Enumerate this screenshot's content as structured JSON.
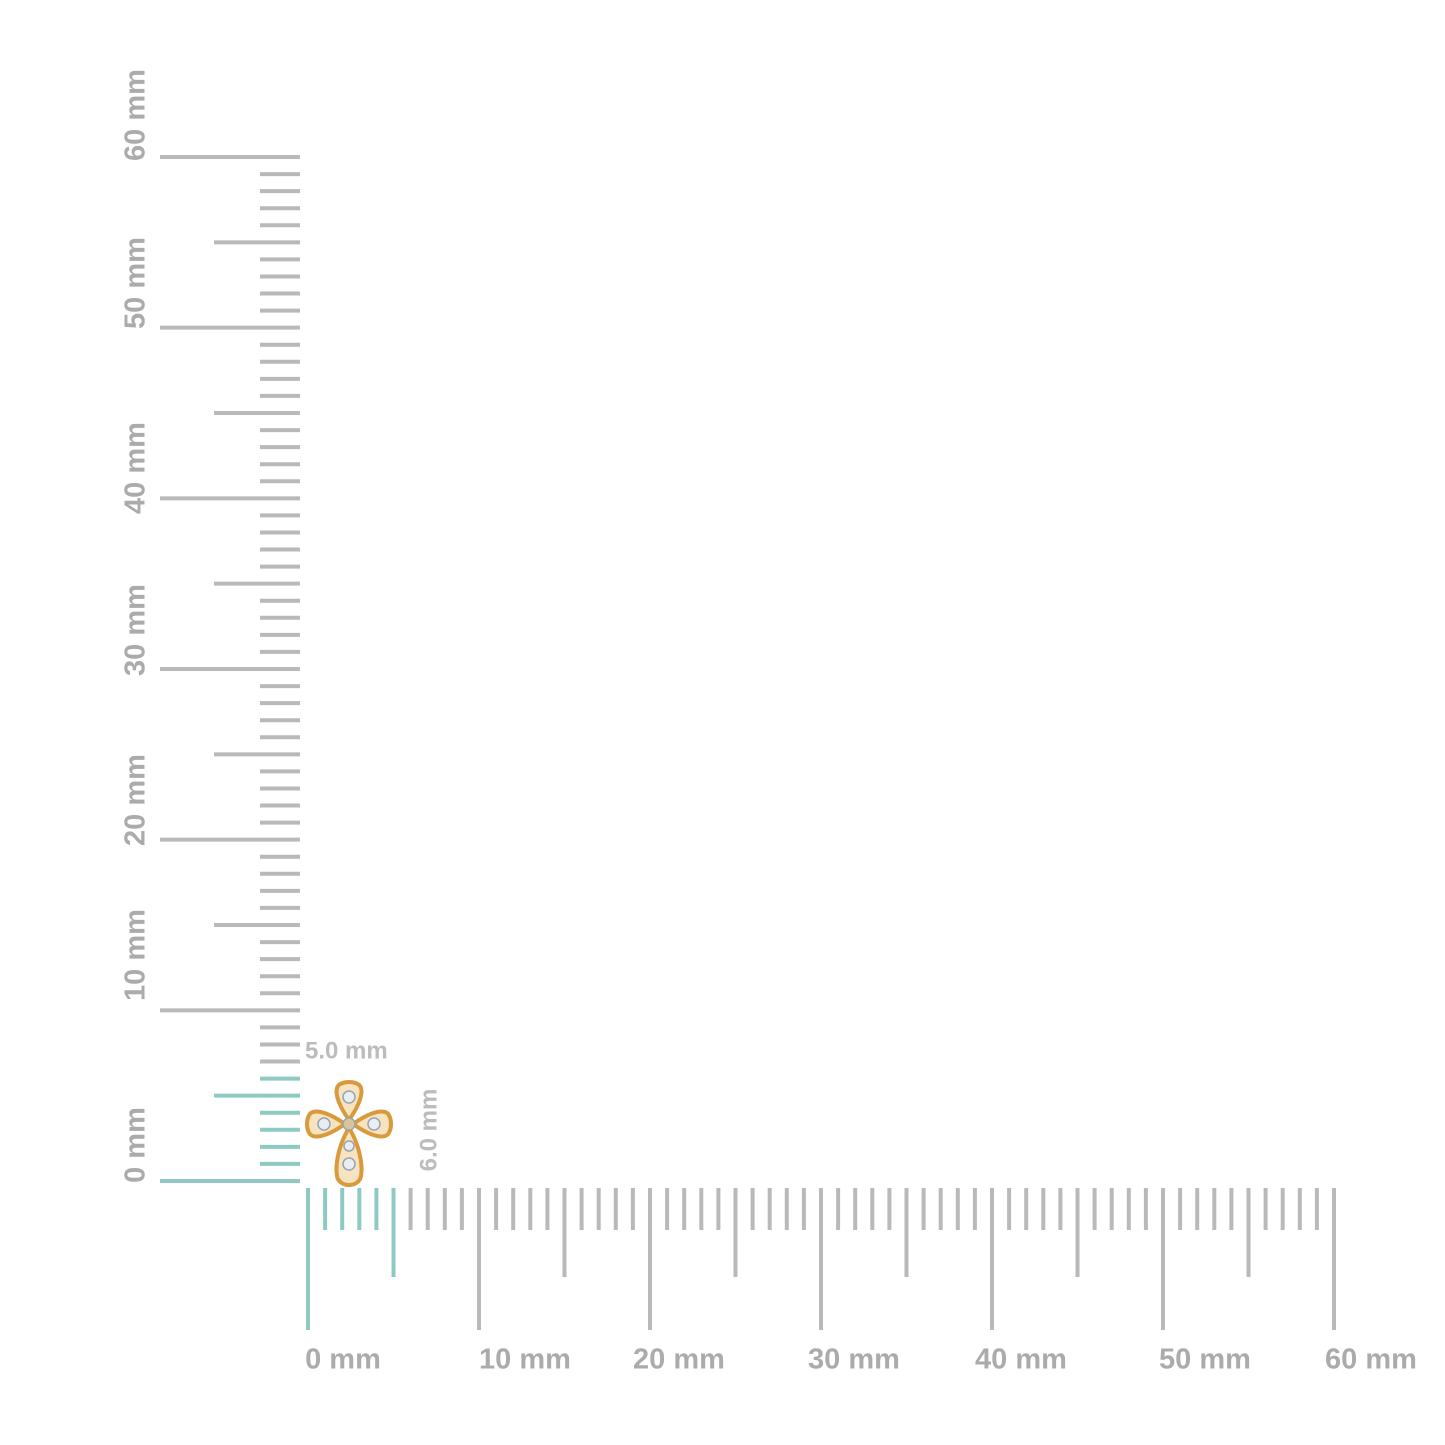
{
  "horizontal_ruler": {
    "labels": [
      "0 mm",
      "10 mm",
      "20 mm",
      "30 mm",
      "40 mm",
      "50 mm",
      "60 mm"
    ]
  },
  "vertical_ruler": {
    "labels": [
      "0 mm",
      "10 mm",
      "20 mm",
      "30 mm",
      "40 mm",
      "50 mm",
      "60 mm"
    ]
  },
  "dimensions": {
    "width": "5.0 mm",
    "height": "6.0 mm"
  }
}
